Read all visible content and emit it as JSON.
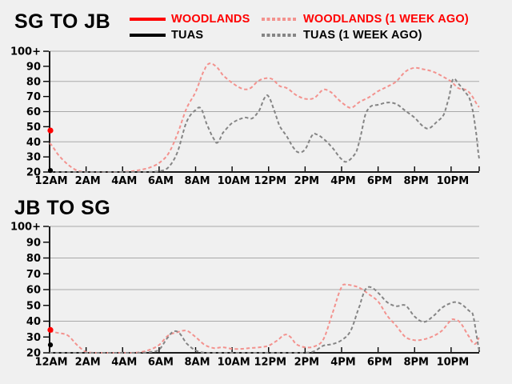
{
  "colors": {
    "background": "#f0f0f0",
    "woodlands": "#ff0000",
    "woodlands_week_ago": "#f3928e",
    "tuas": "#000000",
    "tuas_week_ago": "#858585",
    "gridline": "#a9a9a9",
    "axis": "#000000"
  },
  "legend": {
    "items": [
      {
        "label": "WOODLANDS",
        "color": "#ff0000",
        "text_color": "#ff0000",
        "dash": false
      },
      {
        "label": "WOODLANDS (1 WEEK AGO)",
        "color": "#f3928e",
        "text_color": "#ff0000",
        "dash": true
      },
      {
        "label": "TUAS",
        "color": "#000000",
        "text_color": "#000000",
        "dash": false
      },
      {
        "label": "TUAS (1 WEEK AGO)",
        "color": "#858585",
        "text_color": "#000000",
        "dash": true
      }
    ]
  },
  "chart_data": [
    {
      "type": "line",
      "title": "SG TO JB",
      "xlabel": "",
      "ylabel": "",
      "x_unit": "hour_of_day",
      "xlim": [
        0,
        23.54
      ],
      "ylim": [
        20,
        100
      ],
      "grid": true,
      "gridline_values": [
        40,
        60,
        80,
        100
      ],
      "y_ticks": [
        {
          "value": 20,
          "label": "20"
        },
        {
          "value": 30,
          "label": "30"
        },
        {
          "value": 40,
          "label": "40"
        },
        {
          "value": 50,
          "label": "50"
        },
        {
          "value": 60,
          "label": "60"
        },
        {
          "value": 70,
          "label": "70"
        },
        {
          "value": 80,
          "label": "80"
        },
        {
          "value": 90,
          "label": "90"
        },
        {
          "value": 100,
          "label": "100+"
        }
      ],
      "x_ticks": [
        {
          "hour": 0,
          "label": "12AM"
        },
        {
          "hour": 2,
          "label": "2AM"
        },
        {
          "hour": 4,
          "label": "4AM"
        },
        {
          "hour": 6,
          "label": "6AM"
        },
        {
          "hour": 8,
          "label": "8AM"
        },
        {
          "hour": 10,
          "label": "10AM"
        },
        {
          "hour": 12,
          "label": "12PM"
        },
        {
          "hour": 14,
          "label": "2PM"
        },
        {
          "hour": 16,
          "label": "4PM"
        },
        {
          "hour": 18,
          "label": "6PM"
        },
        {
          "hour": 20,
          "label": "8PM"
        },
        {
          "hour": 22,
          "label": "10PM"
        }
      ],
      "series": [
        {
          "name": "WOODLANDS (1 WEEK AGO)",
          "color": "#f3928e",
          "dash": true,
          "points": [
            [
              0,
              39
            ],
            [
              0.5,
              31
            ],
            [
              1,
              25
            ],
            [
              1.5,
              21
            ],
            [
              2,
              20
            ],
            [
              2.5,
              20
            ],
            [
              3,
              20
            ],
            [
              3.5,
              20
            ],
            [
              4,
              20
            ],
            [
              4.5,
              20.5
            ],
            [
              5,
              21.5
            ],
            [
              5.5,
              23
            ],
            [
              6,
              26
            ],
            [
              6.5,
              32
            ],
            [
              7,
              45
            ],
            [
              7.5,
              62
            ],
            [
              8,
              73
            ],
            [
              8.5,
              88
            ],
            [
              8.8,
              92
            ],
            [
              9.2,
              89
            ],
            [
              9.5,
              84
            ],
            [
              10,
              79
            ],
            [
              10.6,
              75
            ],
            [
              11,
              75.5
            ],
            [
              11.4,
              80
            ],
            [
              11.8,
              82
            ],
            [
              12.2,
              81.5
            ],
            [
              12.6,
              77
            ],
            [
              13,
              75.5
            ],
            [
              13.5,
              71
            ],
            [
              14,
              68.5
            ],
            [
              14.5,
              69
            ],
            [
              15,
              74.5
            ],
            [
              15.4,
              73
            ],
            [
              15.7,
              69.5
            ],
            [
              16,
              66
            ],
            [
              16.5,
              62.5
            ],
            [
              17,
              66.5
            ],
            [
              17.5,
              69.5
            ],
            [
              18,
              73.5
            ],
            [
              18.5,
              76.5
            ],
            [
              19,
              80
            ],
            [
              19.5,
              86.5
            ],
            [
              20,
              89
            ],
            [
              20.5,
              88
            ],
            [
              21,
              86.5
            ],
            [
              21.5,
              83.5
            ],
            [
              22,
              80
            ],
            [
              22.4,
              75.5
            ],
            [
              22.8,
              74.5
            ],
            [
              23.1,
              71
            ],
            [
              23.54,
              63
            ]
          ]
        },
        {
          "name": "TUAS (1 WEEK AGO)",
          "color": "#858585",
          "dash": true,
          "points": [
            [
              0,
              20
            ],
            [
              1,
              20
            ],
            [
              2,
              20
            ],
            [
              3,
              20
            ],
            [
              4,
              20
            ],
            [
              5,
              20
            ],
            [
              6,
              20.5
            ],
            [
              6.5,
              23
            ],
            [
              7,
              33
            ],
            [
              7.5,
              53
            ],
            [
              8,
              61
            ],
            [
              8.3,
              62
            ],
            [
              8.6,
              52
            ],
            [
              9,
              42
            ],
            [
              9.2,
              39.5
            ],
            [
              9.5,
              46
            ],
            [
              10,
              52.5
            ],
            [
              10.7,
              56
            ],
            [
              11.1,
              55.5
            ],
            [
              11.5,
              61
            ],
            [
              11.8,
              69.5
            ],
            [
              12,
              70
            ],
            [
              12.3,
              61
            ],
            [
              12.6,
              50.5
            ],
            [
              13,
              43.5
            ],
            [
              13.4,
              35.5
            ],
            [
              13.65,
              33
            ],
            [
              14,
              35
            ],
            [
              14.4,
              44.5
            ],
            [
              14.6,
              45
            ],
            [
              15,
              42
            ],
            [
              15.5,
              36
            ],
            [
              16,
              28.5
            ],
            [
              16.3,
              27
            ],
            [
              16.8,
              33
            ],
            [
              17.05,
              44
            ],
            [
              17.3,
              58
            ],
            [
              17.6,
              63.5
            ],
            [
              18,
              64.5
            ],
            [
              18.5,
              66
            ],
            [
              19,
              65
            ],
            [
              19.5,
              60.5
            ],
            [
              20,
              56
            ],
            [
              20.5,
              50
            ],
            [
              20.8,
              49
            ],
            [
              21.2,
              53
            ],
            [
              21.6,
              58
            ],
            [
              21.9,
              70
            ],
            [
              22.1,
              81.5
            ],
            [
              22.4,
              78.5
            ],
            [
              22.7,
              74
            ],
            [
              23,
              69
            ],
            [
              23.2,
              60
            ],
            [
              23.38,
              45
            ],
            [
              23.54,
              29
            ]
          ]
        }
      ],
      "current_dots": [
        {
          "name": "WOODLANDS",
          "color": "#ff0000",
          "hour": 0,
          "value": 47.5
        },
        {
          "name": "TUAS",
          "color": "#000000",
          "hour": 0,
          "value": 21
        }
      ]
    },
    {
      "type": "line",
      "title": "JB TO SG",
      "xlabel": "",
      "ylabel": "",
      "x_unit": "hour_of_day",
      "xlim": [
        0,
        23.54
      ],
      "ylim": [
        20,
        100
      ],
      "grid": true,
      "gridline_values": [
        40,
        60,
        80,
        100
      ],
      "y_ticks": [
        {
          "value": 20,
          "label": "20"
        },
        {
          "value": 30,
          "label": "30"
        },
        {
          "value": 40,
          "label": "40"
        },
        {
          "value": 50,
          "label": "50"
        },
        {
          "value": 60,
          "label": "60"
        },
        {
          "value": 70,
          "label": "70"
        },
        {
          "value": 80,
          "label": "80"
        },
        {
          "value": 90,
          "label": "90"
        },
        {
          "value": 100,
          "label": "100+"
        }
      ],
      "x_ticks": [
        {
          "hour": 0,
          "label": "12AM"
        },
        {
          "hour": 2,
          "label": "2AM"
        },
        {
          "hour": 4,
          "label": "4AM"
        },
        {
          "hour": 6,
          "label": "6AM"
        },
        {
          "hour": 8,
          "label": "8AM"
        },
        {
          "hour": 10,
          "label": "10AM"
        },
        {
          "hour": 12,
          "label": "12PM"
        },
        {
          "hour": 14,
          "label": "2PM"
        },
        {
          "hour": 16,
          "label": "4PM"
        },
        {
          "hour": 18,
          "label": "6PM"
        },
        {
          "hour": 20,
          "label": "8PM"
        },
        {
          "hour": 22,
          "label": "10PM"
        }
      ],
      "series": [
        {
          "name": "WOODLANDS (1 WEEK AGO)",
          "color": "#f3928e",
          "dash": true,
          "points": [
            [
              0,
              33.5
            ],
            [
              0.5,
              32.5
            ],
            [
              1,
              31
            ],
            [
              1.5,
              25
            ],
            [
              2,
              20.5
            ],
            [
              2.5,
              20
            ],
            [
              3,
              20
            ],
            [
              3.5,
              20
            ],
            [
              4,
              20
            ],
            [
              4.5,
              20
            ],
            [
              5,
              20.5
            ],
            [
              5.5,
              22
            ],
            [
              6,
              25
            ],
            [
              6.5,
              31
            ],
            [
              7,
              33
            ],
            [
              7.5,
              34
            ],
            [
              8,
              30
            ],
            [
              8.5,
              25
            ],
            [
              9,
              23
            ],
            [
              9.5,
              23.5
            ],
            [
              10,
              22.5
            ],
            [
              10.5,
              22.5
            ],
            [
              11,
              23
            ],
            [
              11.5,
              23.5
            ],
            [
              12,
              24.5
            ],
            [
              12.5,
              28
            ],
            [
              12.9,
              31.5
            ],
            [
              13.2,
              30
            ],
            [
              13.5,
              25.5
            ],
            [
              14,
              23.5
            ],
            [
              14.5,
              24
            ],
            [
              15,
              28.5
            ],
            [
              15.5,
              45
            ],
            [
              16,
              61.5
            ],
            [
              16.3,
              63
            ],
            [
              16.6,
              62.5
            ],
            [
              17,
              61
            ],
            [
              17.5,
              57
            ],
            [
              18,
              52.5
            ],
            [
              18.5,
              43.5
            ],
            [
              19,
              37
            ],
            [
              19.5,
              30
            ],
            [
              20,
              28
            ],
            [
              20.5,
              28.5
            ],
            [
              21,
              30.5
            ],
            [
              21.5,
              34
            ],
            [
              22,
              40.5
            ],
            [
              22.2,
              41
            ],
            [
              22.5,
              39
            ],
            [
              23,
              30
            ],
            [
              23.3,
              25.5
            ],
            [
              23.54,
              29.5
            ]
          ]
        },
        {
          "name": "TUAS (1 WEEK AGO)",
          "color": "#858585",
          "dash": true,
          "points": [
            [
              0,
              20
            ],
            [
              1,
              20
            ],
            [
              2,
              20
            ],
            [
              3,
              20
            ],
            [
              4,
              20
            ],
            [
              5,
              20
            ],
            [
              5.5,
              20.5
            ],
            [
              6,
              22
            ],
            [
              6.5,
              30
            ],
            [
              6.8,
              33.5
            ],
            [
              7.1,
              32.5
            ],
            [
              7.5,
              26
            ],
            [
              8,
              21.5
            ],
            [
              8.5,
              20
            ],
            [
              9,
              20
            ],
            [
              10,
              20
            ],
            [
              11,
              20
            ],
            [
              12,
              20
            ],
            [
              13,
              20
            ],
            [
              14,
              20
            ],
            [
              14.5,
              21
            ],
            [
              15,
              24.5
            ],
            [
              15.5,
              25.5
            ],
            [
              16,
              28
            ],
            [
              16.5,
              34
            ],
            [
              17,
              50
            ],
            [
              17.3,
              60
            ],
            [
              17.6,
              61.5
            ],
            [
              18,
              58
            ],
            [
              18.5,
              52
            ],
            [
              19,
              49.5
            ],
            [
              19.5,
              50
            ],
            [
              20,
              43
            ],
            [
              20.5,
              39.5
            ],
            [
              21,
              43
            ],
            [
              21.5,
              48.5
            ],
            [
              22,
              51.5
            ],
            [
              22.3,
              52
            ],
            [
              22.6,
              50.5
            ],
            [
              23,
              46.5
            ],
            [
              23.2,
              44
            ],
            [
              23.45,
              28
            ],
            [
              23.54,
              21.5
            ]
          ]
        }
      ],
      "current_dots": [
        {
          "name": "WOODLANDS",
          "color": "#ff0000",
          "hour": 0,
          "value": 34.5
        },
        {
          "name": "TUAS",
          "color": "#000000",
          "hour": 0,
          "value": 25
        }
      ]
    }
  ]
}
